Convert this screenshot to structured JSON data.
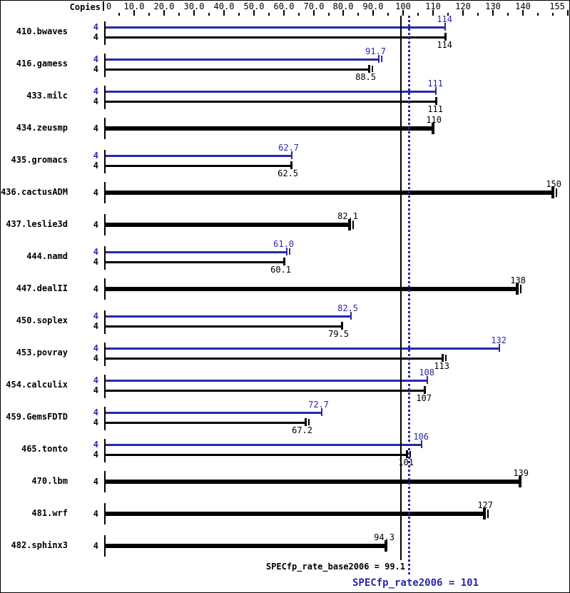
{
  "header": {
    "copies_label": "Copies"
  },
  "axis": {
    "major_ticks": [
      {
        "v": 0,
        "label": "0"
      },
      {
        "v": 10,
        "label": "10.0"
      },
      {
        "v": 20,
        "label": "20.0"
      },
      {
        "v": 30,
        "label": "30.0"
      },
      {
        "v": 40,
        "label": "40.0"
      },
      {
        "v": 50,
        "label": "50.0"
      },
      {
        "v": 60,
        "label": "60.0"
      },
      {
        "v": 70,
        "label": "70.0"
      },
      {
        "v": 80,
        "label": "80.0"
      },
      {
        "v": 90,
        "label": "90.0"
      },
      {
        "v": 100,
        "label": "100"
      },
      {
        "v": 110,
        "label": "110"
      },
      {
        "v": 120,
        "label": "120"
      },
      {
        "v": 130,
        "label": "130"
      },
      {
        "v": 140,
        "label": "140"
      },
      {
        "v": 155,
        "label": "155"
      }
    ],
    "minor_ticks": [
      5,
      15,
      25,
      35,
      45,
      55,
      65,
      75,
      85,
      95,
      105,
      115,
      125,
      135,
      145,
      150
    ]
  },
  "benchmarks": [
    {
      "name": "410.bwaves",
      "copies": "4",
      "peak": {
        "label": "114",
        "value": 114,
        "double_cap": false
      },
      "base": {
        "label": "114",
        "value": 114,
        "double_cap": false
      }
    },
    {
      "name": "416.gamess",
      "copies": "4",
      "peak": {
        "label": "91.7",
        "value": 91.7,
        "double_cap": true
      },
      "base": {
        "label": "88.5",
        "value": 88.5,
        "double_cap": true
      }
    },
    {
      "name": "433.milc",
      "copies": "4",
      "peak": {
        "label": "111",
        "value": 111,
        "double_cap": false
      },
      "base": {
        "label": "111",
        "value": 111,
        "double_cap": false
      }
    },
    {
      "name": "434.zeusmp",
      "copies": "4",
      "peak": null,
      "base": {
        "label": "110",
        "value": 110,
        "double_cap": false
      }
    },
    {
      "name": "435.gromacs",
      "copies": "4",
      "peak": {
        "label": "62.7",
        "value": 62.7,
        "double_cap": false
      },
      "base": {
        "label": "62.5",
        "value": 62.5,
        "double_cap": false
      }
    },
    {
      "name": "436.cactusADM",
      "copies": "4",
      "peak": null,
      "base": {
        "label": "150",
        "value": 150,
        "double_cap": true
      }
    },
    {
      "name": "437.leslie3d",
      "copies": "4",
      "peak": null,
      "base": {
        "label": "82.1",
        "value": 82.1,
        "double_cap": true
      }
    },
    {
      "name": "444.namd",
      "copies": "4",
      "peak": {
        "label": "61.0",
        "value": 61.0,
        "double_cap": true
      },
      "base": {
        "label": "60.1",
        "value": 60.1,
        "double_cap": false
      }
    },
    {
      "name": "447.dealII",
      "copies": "4",
      "peak": null,
      "base": {
        "label": "138",
        "value": 138,
        "double_cap": true
      }
    },
    {
      "name": "450.soplex",
      "copies": "4",
      "peak": {
        "label": "82.5",
        "value": 82.5,
        "double_cap": false
      },
      "base": {
        "label": "79.5",
        "value": 79.5,
        "double_cap": false
      }
    },
    {
      "name": "453.povray",
      "copies": "4",
      "peak": {
        "label": "132",
        "value": 132,
        "double_cap": false
      },
      "base": {
        "label": "113",
        "value": 113,
        "double_cap": true
      }
    },
    {
      "name": "454.calculix",
      "copies": "4",
      "peak": {
        "label": "108",
        "value": 108,
        "double_cap": false
      },
      "base": {
        "label": "107",
        "value": 107,
        "double_cap": false
      }
    },
    {
      "name": "459.GemsFDTD",
      "copies": "4",
      "peak": {
        "label": "72.7",
        "value": 72.7,
        "double_cap": false
      },
      "base": {
        "label": "67.2",
        "value": 67.2,
        "double_cap": true
      }
    },
    {
      "name": "465.tonto",
      "copies": "4",
      "peak": {
        "label": "106",
        "value": 106,
        "double_cap": false
      },
      "base": {
        "label": "101",
        "value": 101,
        "double_cap": true
      }
    },
    {
      "name": "470.lbm",
      "copies": "4",
      "peak": null,
      "base": {
        "label": "139",
        "value": 139,
        "double_cap": false
      }
    },
    {
      "name": "481.wrf",
      "copies": "4",
      "peak": null,
      "base": {
        "label": "127",
        "value": 127,
        "double_cap": true
      }
    },
    {
      "name": "482.sphinx3",
      "copies": "4",
      "peak": null,
      "base": {
        "label": "94.3",
        "value": 94.3,
        "double_cap": false
      }
    }
  ],
  "summary": {
    "base_text": "SPECfp_rate_base2006 = 99.1",
    "peak_text": "SPECfp_rate2006 = 101"
  },
  "colors": {
    "peak": "#2828aa",
    "base": "#000000",
    "background": "#ffffff"
  },
  "chart_data": {
    "type": "bar",
    "orientation": "horizontal",
    "title": "SPEC CPU2006 floating point rate results",
    "categories": [
      "410.bwaves",
      "416.gamess",
      "433.milc",
      "434.zeusmp",
      "435.gromacs",
      "436.cactusADM",
      "437.leslie3d",
      "444.namd",
      "447.dealII",
      "450.soplex",
      "453.povray",
      "454.calculix",
      "459.GemsFDTD",
      "465.tonto",
      "470.lbm",
      "481.wrf",
      "482.sphinx3"
    ],
    "copies_per_benchmark": 4,
    "series": [
      {
        "name": "SPECfp_rate2006 (peak)",
        "color": "#2828aa",
        "values": [
          114,
          91.7,
          111,
          null,
          62.7,
          null,
          null,
          61.0,
          null,
          82.5,
          132,
          108,
          72.7,
          106,
          null,
          null,
          null
        ]
      },
      {
        "name": "SPECfp_rate_base2006 (base)",
        "color": "#000000",
        "values": [
          114,
          88.5,
          111,
          110,
          62.5,
          150,
          82.1,
          60.1,
          138,
          79.5,
          113,
          107,
          67.2,
          101,
          139,
          127,
          94.3
        ]
      }
    ],
    "xlim": [
      0,
      155
    ],
    "grid": false,
    "reference_lines": [
      {
        "name": "SPECfp_rate_base2006",
        "value": 99.1,
        "style": "solid",
        "color": "#000000"
      },
      {
        "name": "SPECfp_rate2006",
        "value": 101,
        "style": "dotted",
        "color": "#2828aa"
      }
    ]
  }
}
